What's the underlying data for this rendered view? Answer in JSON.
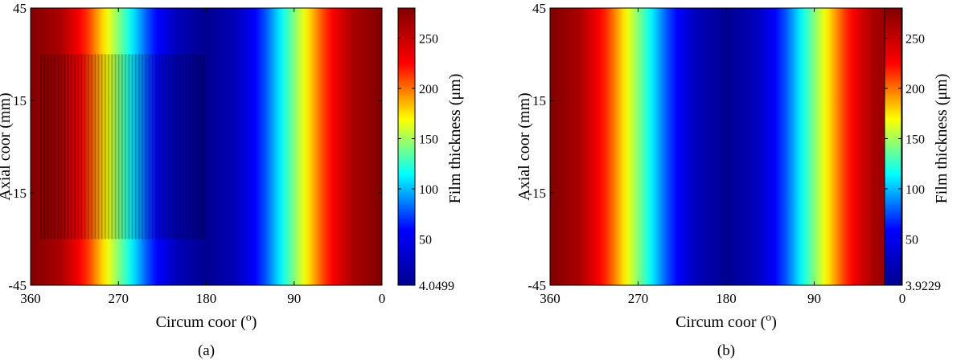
{
  "colormap": [
    "#00008f",
    "#0000ff",
    "#00ffff",
    "#ffff00",
    "#ff0000",
    "#800000"
  ],
  "chart_data": [
    {
      "type": "heatmap",
      "panel_label": "(a)",
      "xlabel": "Circum coor (",
      "xlabel_sup": "o",
      "xlabel_end": ")",
      "ylabel": "Axial coor (mm)",
      "xlim": [
        360,
        0
      ],
      "ylim": [
        -45,
        45
      ],
      "xticks": [
        "360",
        "270",
        "180",
        "90",
        "0"
      ],
      "yticks": [
        "45",
        "15",
        "-15",
        "-45"
      ],
      "colorbar": {
        "label": "Film thickness (μm)",
        "min": 4.0499,
        "max": 280,
        "ticks": [
          "250",
          "200",
          "150",
          "100",
          "50",
          "4.0499"
        ]
      },
      "profile": {
        "x_deg": [
          0,
          30,
          60,
          90,
          120,
          150,
          180,
          210,
          240,
          270,
          300,
          330,
          360
        ],
        "thickness_um": [
          280,
          262,
          210,
          143,
          76,
          25,
          4.0499,
          25,
          76,
          143,
          210,
          262,
          280
        ]
      },
      "textured_region": {
        "x_deg": [
          350,
          180
        ],
        "y_mm": [
          -30,
          30
        ]
      }
    },
    {
      "type": "heatmap",
      "panel_label": "(b)",
      "xlabel": "Circum coor (",
      "xlabel_sup": "o",
      "xlabel_end": ")",
      "ylabel": "Axial coor (mm)",
      "xlim": [
        360,
        0
      ],
      "ylim": [
        -45,
        45
      ],
      "xticks": [
        "360",
        "270",
        "180",
        "90",
        "0"
      ],
      "yticks": [
        "45",
        "15",
        "-15",
        "-45"
      ],
      "colorbar": {
        "label": "Film thickness (μm)",
        "min": 3.9229,
        "max": 280,
        "ticks": [
          "250",
          "200",
          "150",
          "100",
          "50",
          "3.9229"
        ]
      },
      "profile": {
        "x_deg": [
          0,
          30,
          60,
          90,
          120,
          150,
          180,
          210,
          240,
          270,
          300,
          330,
          360
        ],
        "thickness_um": [
          280,
          262,
          210,
          143,
          76,
          25,
          3.9229,
          25,
          76,
          143,
          210,
          262,
          280
        ]
      }
    }
  ]
}
